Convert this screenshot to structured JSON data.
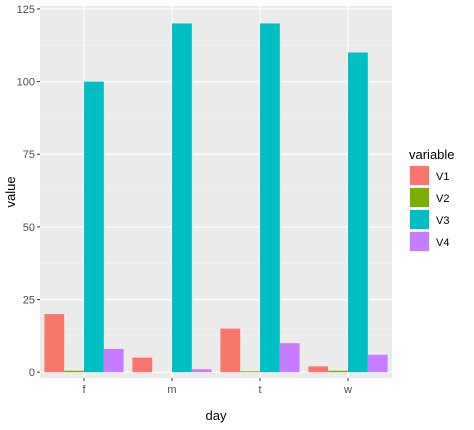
{
  "chart_data": {
    "type": "bar",
    "xlabel": "day",
    "ylabel": "value",
    "categories": [
      "f",
      "m",
      "t",
      "w"
    ],
    "ylim": [
      -2,
      126
    ],
    "yticks": [
      0,
      25,
      50,
      75,
      100,
      125
    ],
    "grid": true,
    "legend": {
      "title": "variable",
      "position": "right"
    },
    "series": [
      {
        "name": "V1",
        "color": "#F8766D",
        "values": [
          20,
          5,
          15,
          2
        ]
      },
      {
        "name": "V2",
        "color": "#7CAE00",
        "values": [
          0.5,
          0,
          0.3,
          0.5
        ]
      },
      {
        "name": "V3",
        "color": "#00BFC4",
        "values": [
          100,
          120,
          120,
          110
        ]
      },
      {
        "name": "V4",
        "color": "#C77CFF",
        "values": [
          8,
          1,
          10,
          6
        ]
      }
    ]
  }
}
